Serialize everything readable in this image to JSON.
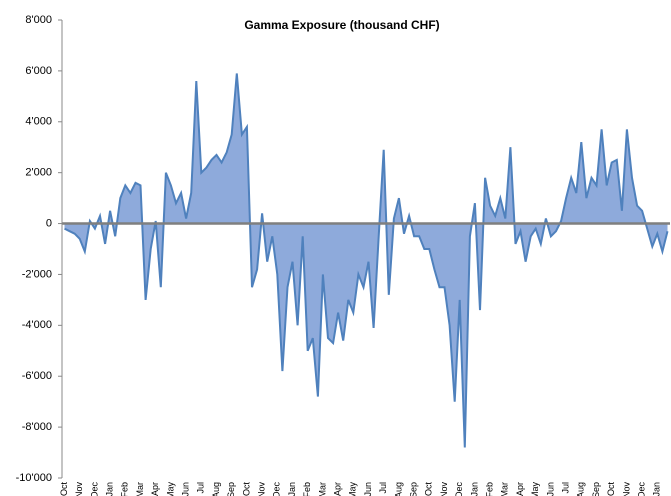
{
  "chart_data": {
    "type": "area",
    "title": "Gamma Exposure  (thousand CHF)",
    "categories": [
      "Oct",
      null,
      null,
      "Nov",
      null,
      null,
      "Dec",
      null,
      null,
      "Jan",
      null,
      null,
      "Feb",
      null,
      null,
      "Mar",
      null,
      null,
      "Apr",
      null,
      null,
      "May",
      null,
      null,
      "Jun",
      null,
      null,
      "Jul",
      null,
      null,
      "Aug",
      null,
      null,
      "Sep",
      null,
      null,
      "Oct",
      null,
      null,
      "Nov",
      null,
      null,
      "Dec",
      null,
      null,
      "Jan",
      null,
      null,
      "Feb",
      null,
      null,
      "Mar",
      null,
      null,
      "Apr",
      null,
      null,
      "May",
      null,
      null,
      "Jun",
      null,
      null,
      "Jul",
      null,
      null,
      "Aug",
      null,
      null,
      "Sep",
      null,
      null,
      "Oct",
      null,
      null,
      "Nov",
      null,
      null,
      "Dec",
      null,
      null,
      "Jan",
      null,
      null,
      "Feb",
      null,
      null,
      "Mar",
      null,
      null,
      "Apr",
      null,
      null,
      "May",
      null,
      null,
      "Jun",
      null,
      null,
      "Jul",
      null,
      null,
      "Aug",
      null,
      null,
      "Sep",
      null,
      null,
      "Oct",
      null,
      null,
      "Nov",
      null,
      null,
      "Dec",
      null,
      null,
      "Jan",
      null,
      null
    ],
    "values": [
      -200,
      -300,
      -400,
      -600,
      -1100,
      100,
      -200,
      300,
      -800,
      500,
      -500,
      1000,
      1500,
      1200,
      1600,
      1500,
      -3000,
      -1000,
      100,
      -2500,
      2000,
      1500,
      800,
      1200,
      200,
      1200,
      5600,
      2000,
      2200,
      2500,
      2700,
      2400,
      2800,
      3500,
      5900,
      3500,
      3800,
      -2500,
      -1800,
      400,
      -1500,
      -500,
      -2000,
      -5800,
      -2500,
      -1500,
      -4000,
      -500,
      -5000,
      -4500,
      -6800,
      -2000,
      -4500,
      -4700,
      -3500,
      -4600,
      -3000,
      -3500,
      -2000,
      -2500,
      -1500,
      -4100,
      -500,
      2900,
      -2800,
      200,
      1000,
      -400,
      300,
      -500,
      -500,
      -1000,
      -1000,
      -1800,
      -2500,
      -2500,
      -4000,
      -7000,
      -3000,
      -8800,
      -500,
      800,
      -3400,
      1800,
      700,
      300,
      1000,
      200,
      3000,
      -800,
      -300,
      -1500,
      -500,
      -200,
      -800,
      200,
      -500,
      -300,
      100,
      1000,
      1800,
      1200,
      3200,
      1000,
      1800,
      1500,
      3700,
      1500,
      2400,
      2500,
      500,
      3700,
      1800,
      700,
      500,
      -200,
      -900,
      -400,
      -1100,
      -300
    ],
    "color": "#4f81bd",
    "fill": "#8eaadb",
    "ylim": [
      -10000,
      8000
    ],
    "yticks": [
      {
        "value": -10000,
        "label": "-10'000"
      },
      {
        "value": -8000,
        "label": "-8'000"
      },
      {
        "value": -6000,
        "label": "-6'000"
      },
      {
        "value": -4000,
        "label": "-4'000"
      },
      {
        "value": -2000,
        "label": "-2'000"
      },
      0,
      {
        "value": 2000,
        "label": "2'000"
      },
      {
        "value": 4000,
        "label": "4'000"
      },
      {
        "value": 6000,
        "label": "6'000"
      },
      {
        "value": 8000,
        "label": "8'000"
      }
    ]
  }
}
